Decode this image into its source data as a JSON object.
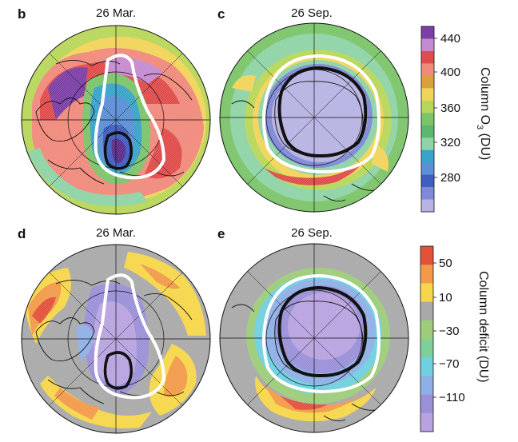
{
  "panels": [
    {
      "id": "b",
      "letter": "b",
      "date": "26 Mar."
    },
    {
      "id": "c",
      "letter": "c",
      "date": "26 Sep."
    },
    {
      "id": "d",
      "letter": "d",
      "date": "26 Mar."
    },
    {
      "id": "e",
      "letter": "e",
      "date": "26 Sep."
    }
  ],
  "colorbars": {
    "ozone": {
      "title": "Column O3 (DU)",
      "title_main": "Column O",
      "title_sub": "3",
      "title_unit": " (DU)",
      "ticks": [
        "440",
        "400",
        "360",
        "320",
        "280"
      ],
      "colors": [
        "#7b3fa6",
        "#c58bd0",
        "#e04b4b",
        "#f08a7c",
        "#d9a040",
        "#f1d45a",
        "#b8d65a",
        "#7cc46a",
        "#5db86f",
        "#8fd3a6",
        "#3aa3c9",
        "#5b8fd6",
        "#3f5ec1",
        "#7f8ad6",
        "#b7b3e3"
      ]
    },
    "deficit": {
      "title": "Column deficit (DU)",
      "ticks": [
        "50",
        "10",
        "−30",
        "−70",
        "−110"
      ],
      "colors": [
        "#e2513c",
        "#f29a4a",
        "#f6d64a",
        "#a9a9a9",
        "#9dcc7a",
        "#7fcf9a",
        "#6fd0e0",
        "#8fb0e6",
        "#9a90d8",
        "#b8a3e0"
      ]
    }
  }
}
